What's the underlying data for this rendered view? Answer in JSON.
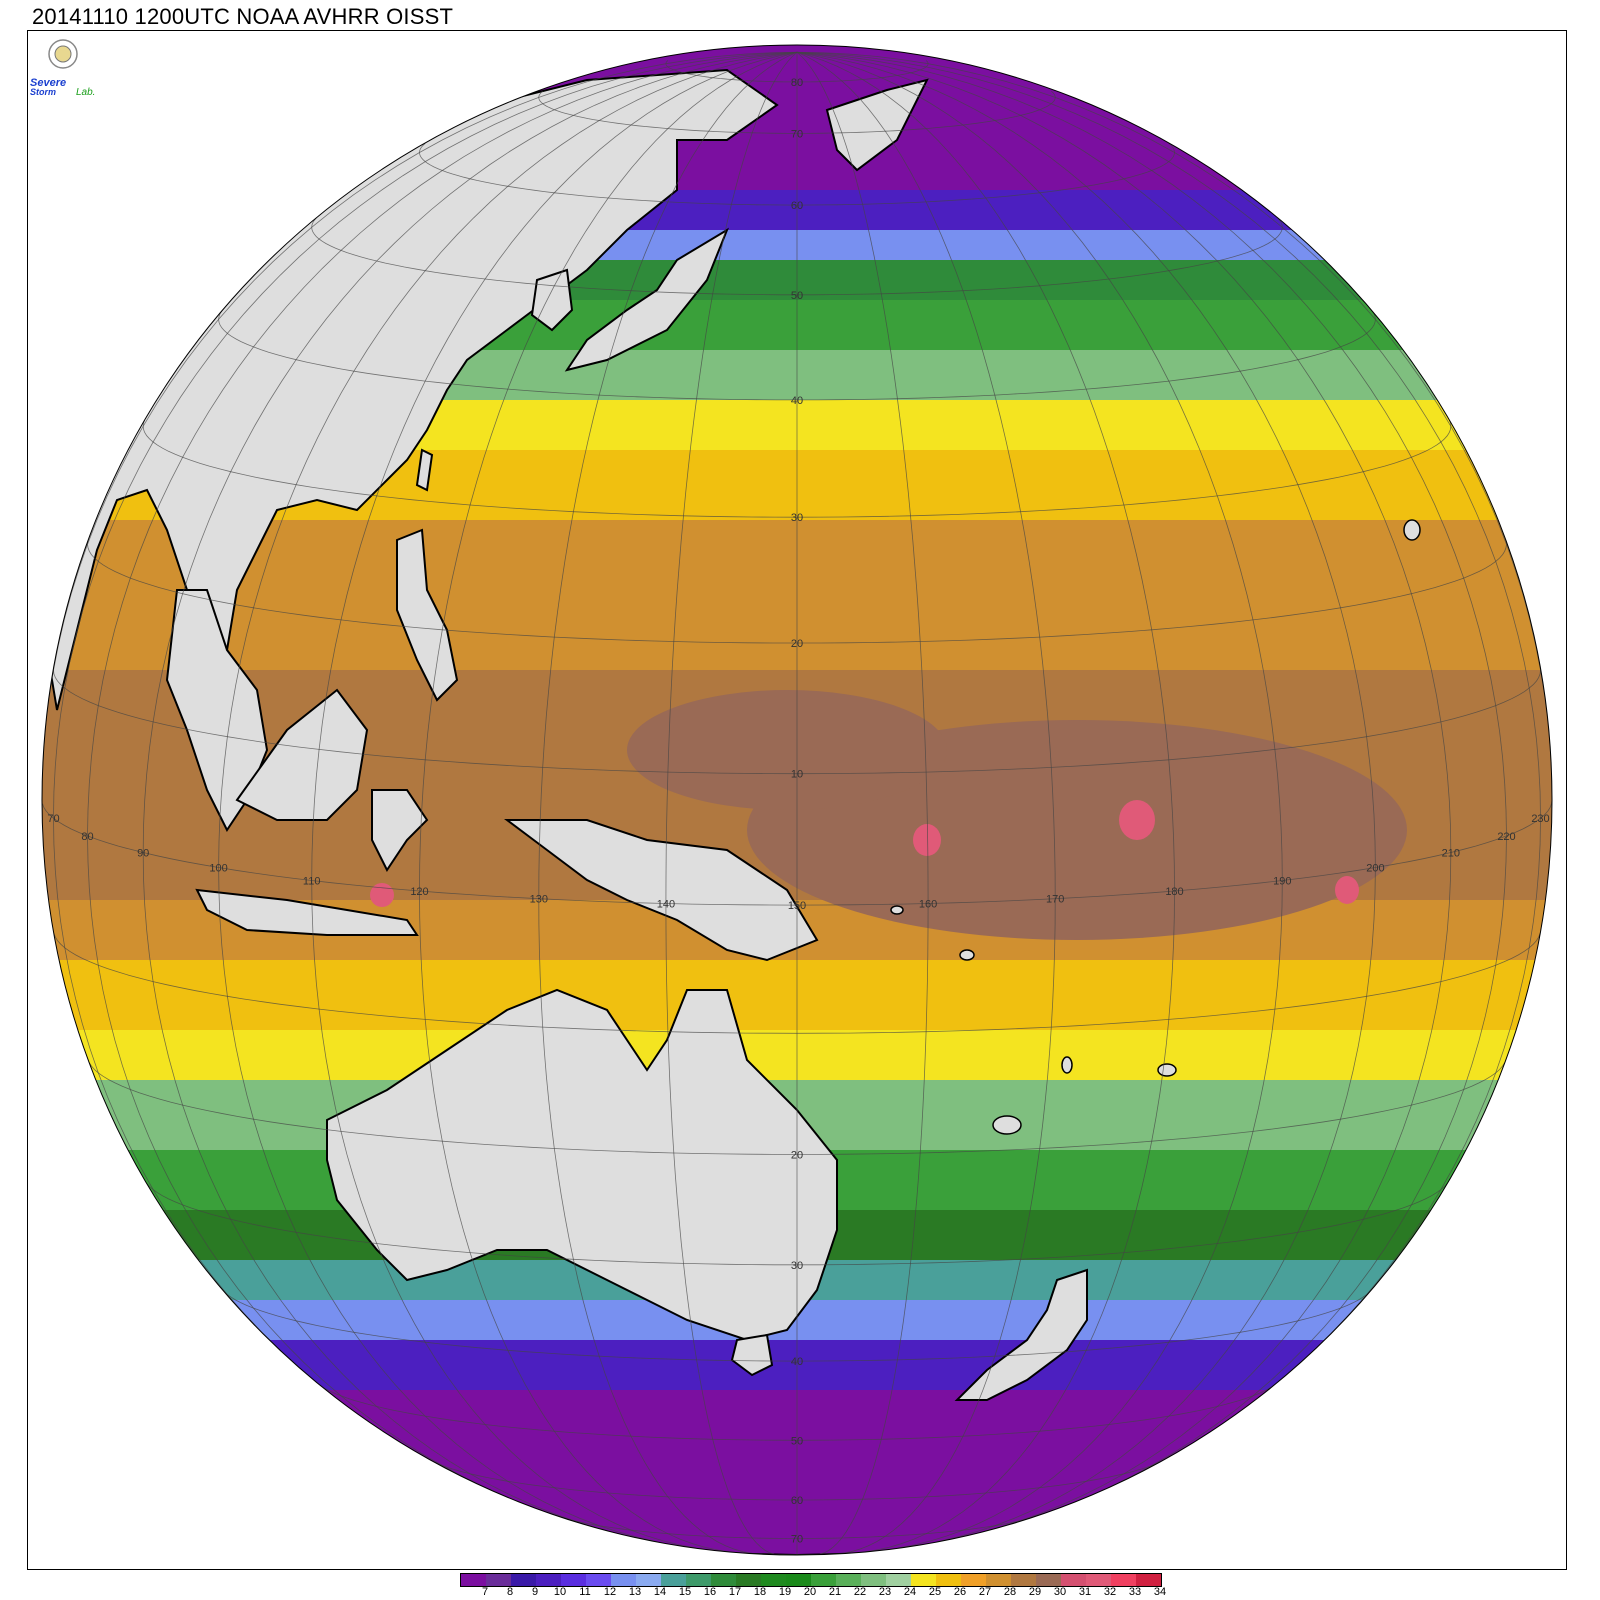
{
  "title": "20141110 1200UTC NOAA AVHRR OISST",
  "logo": {
    "text_top": "Severe",
    "text_bottom": "Storm",
    "text_lab": "Lab."
  },
  "colorbar": {
    "colors": [
      "#7b0fa0",
      "#6a2d9a",
      "#3a1aa8",
      "#4c1fc0",
      "#5a2ee0",
      "#6a4cf0",
      "#7890f0",
      "#8aaaf0",
      "#4aa09a",
      "#3e9a6a",
      "#2f8b3a",
      "#2a7a24",
      "#1f8a1f",
      "#1a8a1a",
      "#3aa03a",
      "#5ab05a",
      "#7fbf7f",
      "#a0d0a0",
      "#f4e420",
      "#f0c010",
      "#f0a028",
      "#d09030",
      "#b07840",
      "#9a6a55",
      "#d45070",
      "#e05a78",
      "#f04060",
      "#d02040"
    ],
    "labels": [
      "7",
      "8",
      "9",
      "10",
      "11",
      "12",
      "13",
      "14",
      "15",
      "16",
      "17",
      "18",
      "19",
      "20",
      "21",
      "22",
      "23",
      "24",
      "25",
      "26",
      "27",
      "28",
      "29",
      "30",
      "31",
      "32",
      "33",
      "34"
    ]
  },
  "graticule": {
    "lon_labels": [
      "70",
      "80",
      "90",
      "100",
      "110",
      "120",
      "130",
      "140",
      "150",
      "160",
      "170",
      "180",
      "190",
      "200",
      "210",
      "220",
      "230"
    ],
    "lat_labels": [
      "80",
      "70",
      "60",
      "50",
      "40",
      "30",
      "20",
      "10",
      "20",
      "30",
      "40",
      "50",
      "60",
      "70"
    ]
  },
  "colors": {
    "land": "#dedede",
    "coast": "#000000",
    "grid": "#444444"
  }
}
